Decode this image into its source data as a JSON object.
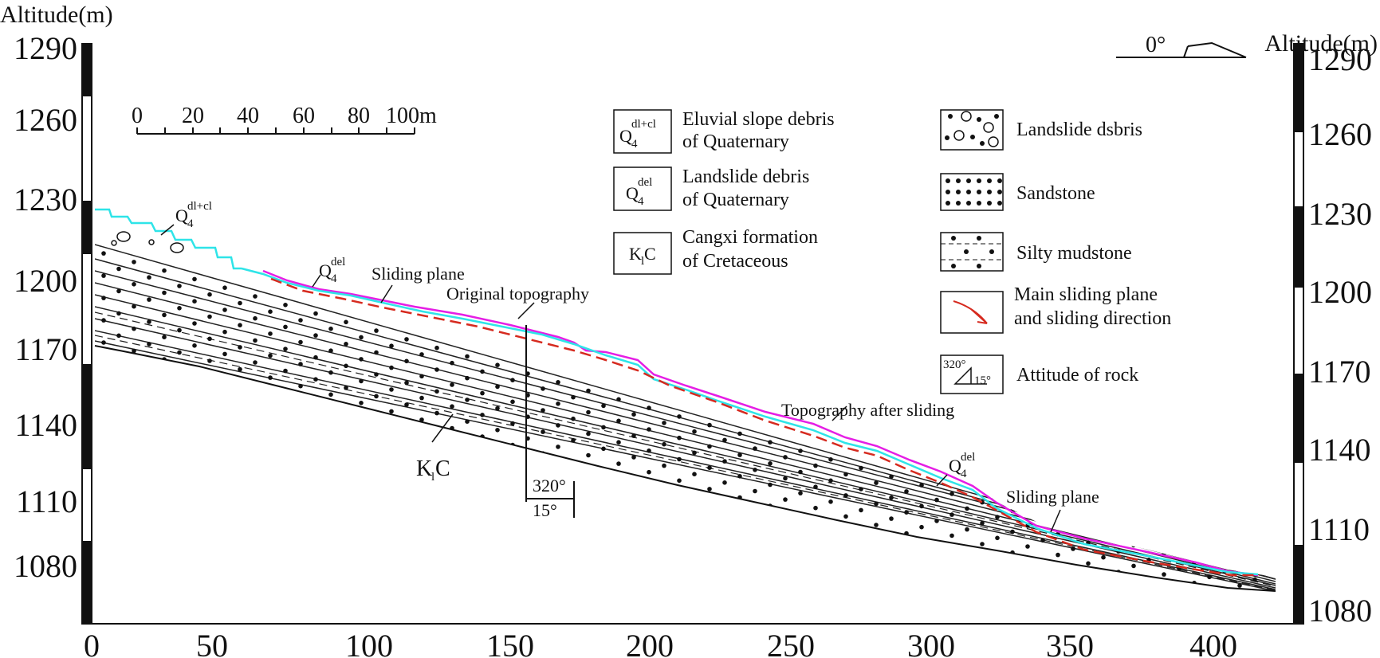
{
  "axes": {
    "y_title_left": "Altitude(m)",
    "y_title_right": "Altitude(m)",
    "y_ticks": [
      "1290",
      "1260",
      "1230",
      "1200",
      "1170",
      "1140",
      "1110",
      "1080"
    ],
    "x_ticks": [
      "0",
      "50",
      "100",
      "150",
      "200",
      "250",
      "300",
      "350",
      "400"
    ]
  },
  "scale_bar": {
    "labels": [
      "0",
      "20",
      "40",
      "60",
      "80",
      "100m"
    ]
  },
  "north_arrow": {
    "label": "0°"
  },
  "attitude_mark": {
    "strike": "320°",
    "dip": "15°"
  },
  "labels": {
    "q4_main": "Q",
    "q4_sub": "4",
    "q4_sup_dlcl": "dl+cl",
    "q4_sup_del": "del",
    "sliding_plane": "Sliding plane",
    "original_topography": "Original topography",
    "topography_after": "Topography after sliding",
    "k1c_k": "K",
    "k1c_sub": "l",
    "k1c_c": "C"
  },
  "legend": {
    "eluvial": {
      "line1": "Eluvial slope debris",
      "line2": "of Quaternary"
    },
    "landslide_debris": {
      "line1": "Landslide debris",
      "line2": "of Quaternary"
    },
    "cangxi": {
      "line1": "Cangxi formation",
      "line2": "of Cretaceous"
    },
    "landslide_dsbris": "Landslide dsbris",
    "sandstone": "Sandstone",
    "silty_mudstone": "Silty mudstone",
    "main_sliding": {
      "line1": "Main sliding plane",
      "line2": "and sliding direction"
    },
    "attitude": {
      "label": "Attitude of rock",
      "strike": "320°",
      "dip": "15°"
    }
  },
  "colors": {
    "original_topography": "#e51ee5",
    "topography_after_sliding": "#2ee4e8",
    "sliding_plane": "#d62a1f",
    "strata": "#111111"
  }
}
